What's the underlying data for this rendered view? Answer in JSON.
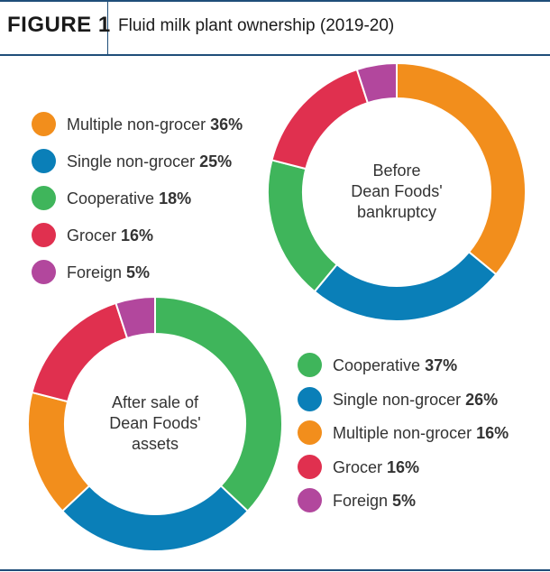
{
  "header": {
    "figure_label": "FIGURE 1",
    "title": "Fluid milk plant ownership (2019-20)"
  },
  "chart_data": [
    {
      "type": "donut",
      "center_label": [
        "Before",
        "Dean Foods'",
        "bankruptcy"
      ],
      "slices": [
        {
          "label": "Multiple non-grocer",
          "value": 36,
          "value_label": "36%",
          "color": "#f28e1c"
        },
        {
          "label": "Single non-grocer",
          "value": 25,
          "value_label": "25%",
          "color": "#0a7fb8"
        },
        {
          "label": "Cooperative",
          "value": 18,
          "value_label": "18%",
          "color": "#3fb55b"
        },
        {
          "label": "Grocer",
          "value": 16,
          "value_label": "16%",
          "color": "#e0304f"
        },
        {
          "label": "Foreign",
          "value": 5,
          "value_label": "5%",
          "color": "#b2479d"
        }
      ]
    },
    {
      "type": "donut",
      "center_label": [
        "After sale of",
        "Dean Foods'",
        "assets"
      ],
      "slices": [
        {
          "label": "Cooperative",
          "value": 37,
          "value_label": "37%",
          "color": "#3fb55b"
        },
        {
          "label": "Single non-grocer",
          "value": 26,
          "value_label": "26%",
          "color": "#0a7fb8"
        },
        {
          "label": "Multiple non-grocer",
          "value": 16,
          "value_label": "16%",
          "color": "#f28e1c"
        },
        {
          "label": "Grocer",
          "value": 16,
          "value_label": "16%",
          "color": "#e0304f"
        },
        {
          "label": "Foreign",
          "value": 5,
          "value_label": "5%",
          "color": "#b2479d"
        }
      ]
    }
  ]
}
